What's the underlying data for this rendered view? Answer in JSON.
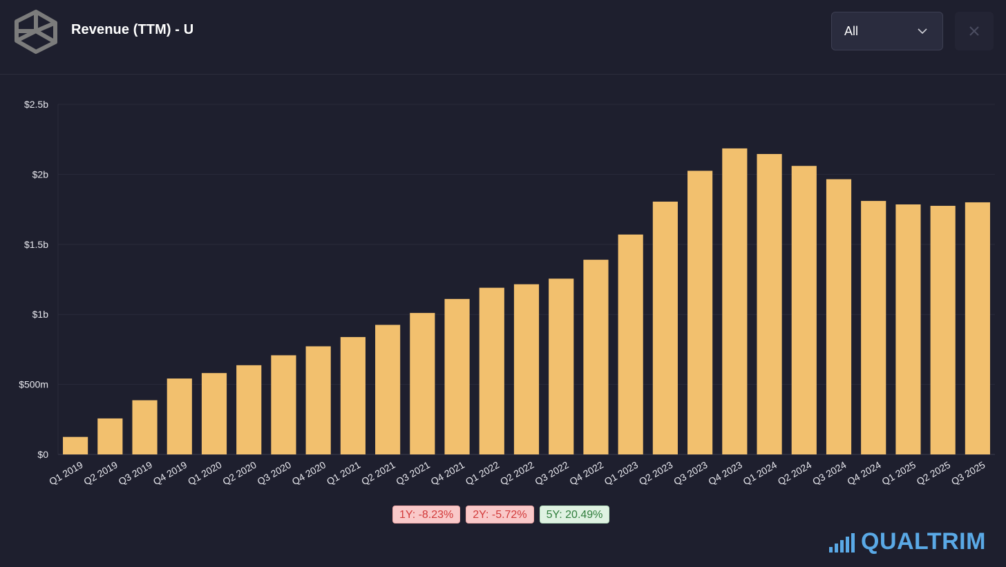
{
  "header": {
    "title": "Revenue (TTM) - U",
    "logo_icon": "unity-logo-icon",
    "range_select": {
      "value": "All",
      "icon": "chevron-down-icon"
    },
    "close_icon": "close-icon"
  },
  "colors": {
    "background": "#1e1f2e",
    "bar": "#f2c06e",
    "negative": "#d23a3a",
    "positive": "#2f7d3c",
    "brand": "#5aa9e6"
  },
  "chart_data": {
    "type": "bar",
    "title": "Revenue (TTM) - U",
    "xlabel": "",
    "ylabel": "",
    "categories": [
      "Q1 2019",
      "Q2 2019",
      "Q3 2019",
      "Q4 2019",
      "Q1 2020",
      "Q2 2020",
      "Q3 2020",
      "Q4 2020",
      "Q1 2021",
      "Q2 2021",
      "Q3 2021",
      "Q4 2021",
      "Q1 2022",
      "Q2 2022",
      "Q3 2022",
      "Q4 2022",
      "Q1 2023",
      "Q2 2023",
      "Q3 2023",
      "Q4 2023",
      "Q1 2024",
      "Q2 2024",
      "Q3 2024",
      "Q4 2024",
      "Q1 2025",
      "Q2 2025",
      "Q3 2025"
    ],
    "values": [
      125,
      257,
      387,
      542,
      581,
      637,
      708,
      772,
      838,
      925,
      1010,
      1110,
      1190,
      1215,
      1255,
      1390,
      1570,
      1805,
      2025,
      2185,
      2145,
      2060,
      1965,
      1810,
      1785,
      1775,
      1800
    ],
    "value_unit": "millions USD",
    "ylim": [
      0,
      2500
    ],
    "yticks": [
      {
        "value": 0,
        "label": "$0"
      },
      {
        "value": 500,
        "label": "$500m"
      },
      {
        "value": 1000,
        "label": "$1b"
      },
      {
        "value": 1500,
        "label": "$1.5b"
      },
      {
        "value": 2000,
        "label": "$2b"
      },
      {
        "value": 2500,
        "label": "$2.5b"
      }
    ],
    "grid": true,
    "legend": "none"
  },
  "badges": [
    {
      "label": "1Y: -8.23%",
      "tone": "neg"
    },
    {
      "label": "2Y: -5.72%",
      "tone": "neg"
    },
    {
      "label": "5Y: 20.49%",
      "tone": "pos"
    }
  ],
  "brand": {
    "name": "QUALTRIM",
    "icon": "signal-bars-icon"
  }
}
